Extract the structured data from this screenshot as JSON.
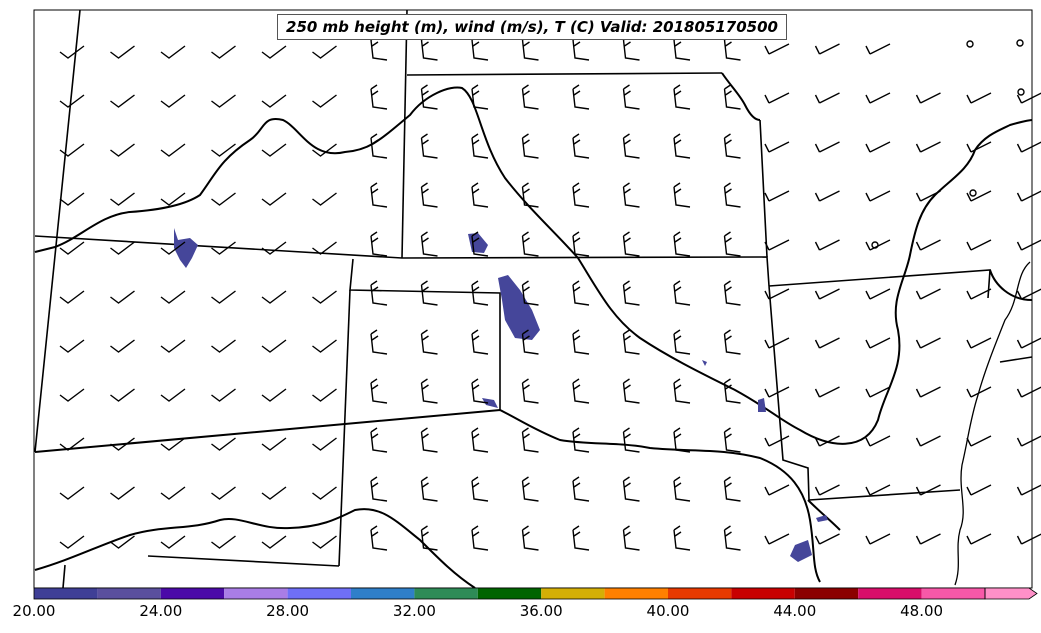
{
  "title": "250 mb height (m), wind (m/s), T (C) Valid: 201805170500",
  "colorbar": {
    "ticks": [
      "20.00",
      "24.00",
      "28.00",
      "32.00",
      "36.00",
      "40.00",
      "44.00",
      "48.00"
    ],
    "colors": [
      "#3f3f96",
      "#5a4f9e",
      "#4b0aa8",
      "#a97de6",
      "#6f6ff7",
      "#2f7fc9",
      "#2e8b57",
      "#006400",
      "#d4af06",
      "#ff8000",
      "#e83a00",
      "#c80000",
      "#8b0000",
      "#d80d6a",
      "#f758a8",
      "#ff90c8"
    ]
  },
  "colors": {
    "temperature_fill": "#45469a",
    "lines": "#000000"
  }
}
